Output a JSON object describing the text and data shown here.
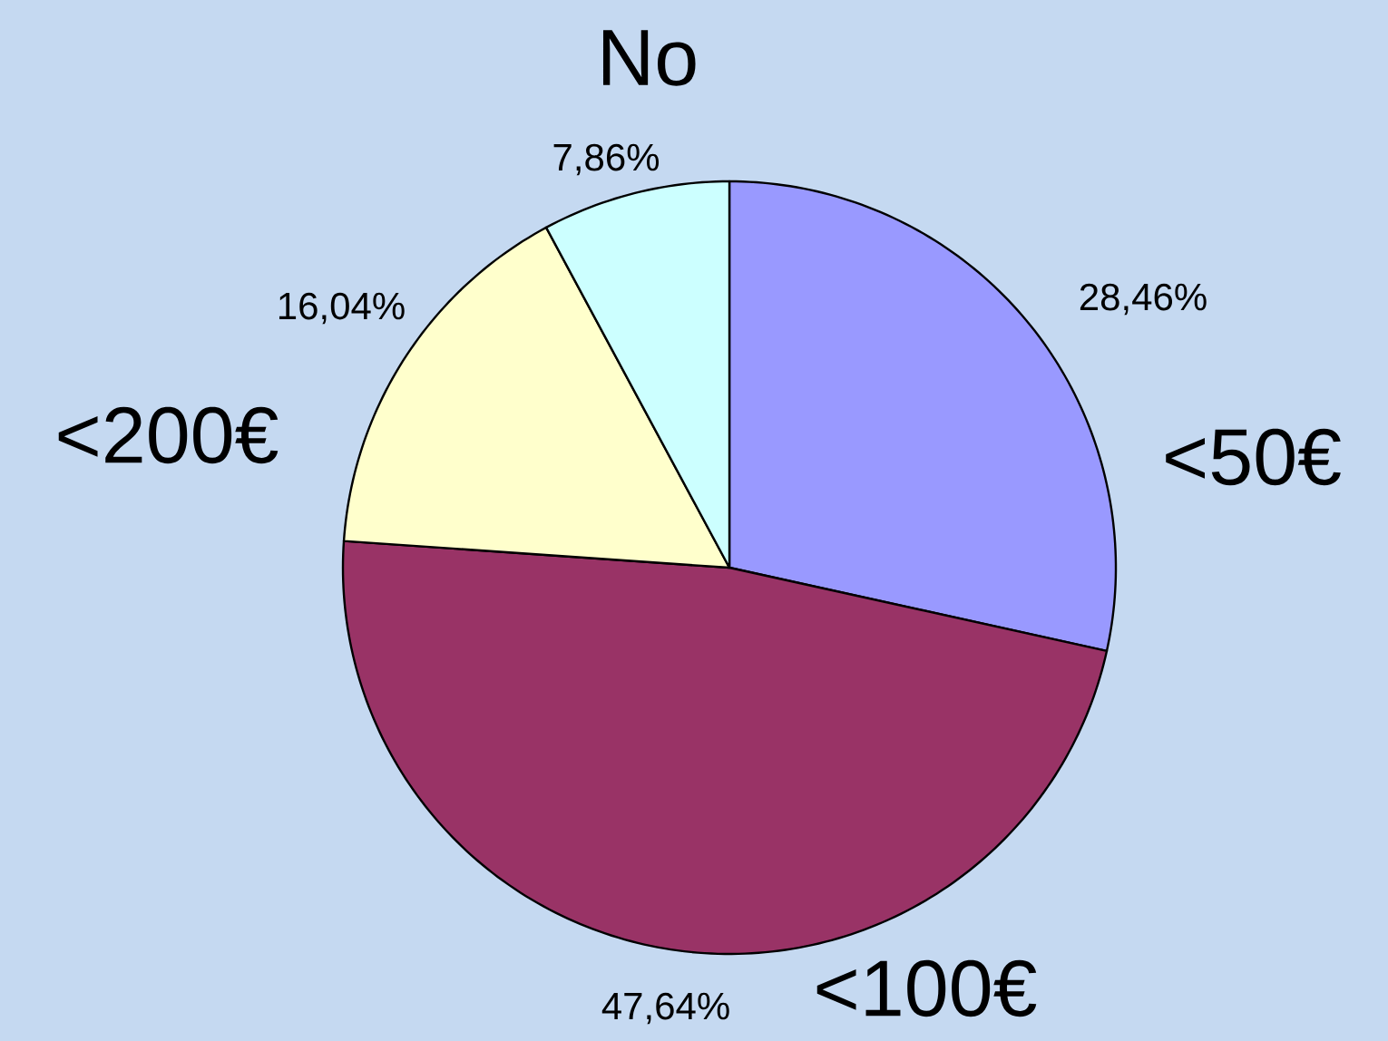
{
  "chart_data": {
    "type": "pie",
    "categories": [
      "<50€",
      "<100€",
      "<200€",
      "No"
    ],
    "values": [
      28.46,
      47.64,
      16.04,
      7.86
    ],
    "colors": [
      "#9999ff",
      "#993366",
      "#ffffcc",
      "#ccffff"
    ],
    "value_labels": [
      "28,46%",
      "47,64%",
      "16,04%",
      "7,86%"
    ]
  }
}
